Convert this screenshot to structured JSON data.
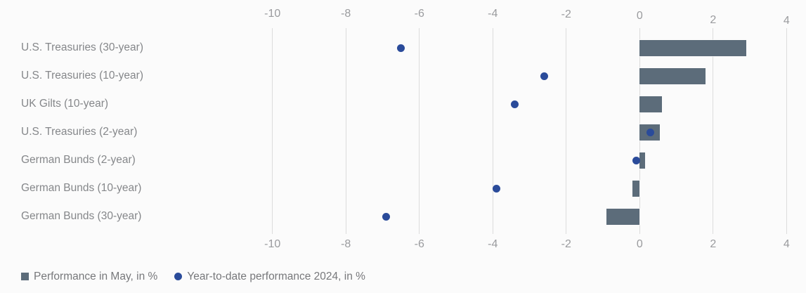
{
  "chart_data": {
    "type": "bar",
    "orientation": "horizontal",
    "title": "",
    "categories": [
      "U.S. Treasuries (30-year)",
      "U.S. Treasuries (10-year)",
      "UK Gilts (10-year)",
      "U.S. Treasuries (2-year)",
      "German Bunds (2-year)",
      "German Bunds (10-year)",
      "German Bunds (30-year)"
    ],
    "series": [
      {
        "name": "Performance in May, in %",
        "type": "bar",
        "marker": "square",
        "color": "#5c6c7a",
        "values": [
          2.9,
          1.8,
          0.6,
          0.55,
          0.15,
          -0.2,
          -0.9
        ]
      },
      {
        "name": "Year-to-date performance 2024, in %",
        "type": "scatter",
        "marker": "circle",
        "color": "#2a4b9a",
        "values": [
          -6.5,
          -2.6,
          -3.4,
          0.3,
          -0.1,
          -3.9,
          -6.9
        ]
      }
    ],
    "x_ticks": [
      -10,
      -8,
      -6,
      -4,
      -2,
      0,
      2,
      4
    ],
    "xlim": [
      -10,
      4
    ],
    "xlabel": "",
    "ylabel": "",
    "grid": true,
    "gridlines": "vertical",
    "axis_labels_position": "top-and-bottom",
    "legend_position": "bottom-left"
  },
  "colors": {
    "background": "#fbfbfb",
    "gridline": "#dcdcdc",
    "tick_text": "#9a9b9e",
    "category_text": "#85878a",
    "legend_text": "#77787b",
    "bar_fill": "#5c6c7a",
    "dot_fill": "#2a4b9a"
  }
}
